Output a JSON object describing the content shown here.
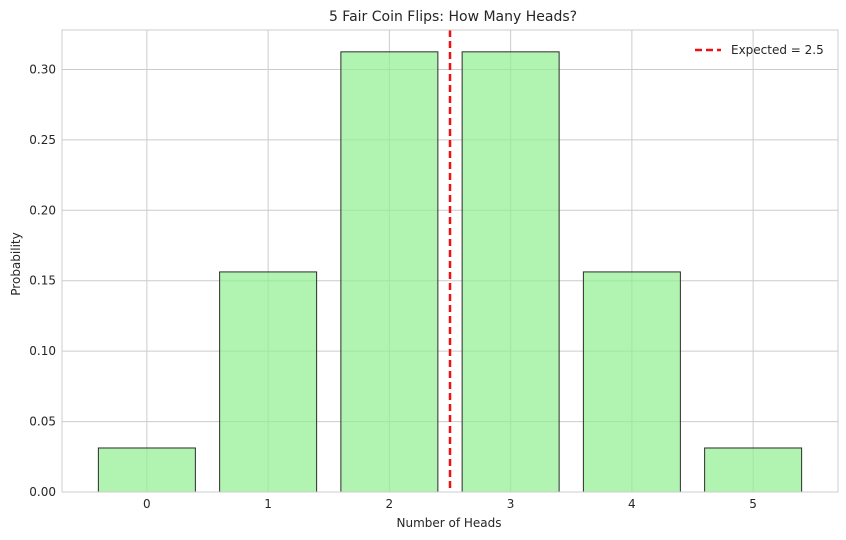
{
  "chart_data": {
    "type": "bar",
    "title": "5 Fair Coin Flips: How Many Heads?",
    "xlabel": "Number of Heads",
    "ylabel": "Probability",
    "categories": [
      "0",
      "1",
      "2",
      "3",
      "4",
      "5"
    ],
    "x": [
      0,
      1,
      2,
      3,
      4,
      5
    ],
    "values": [
      0.03125,
      0.15625,
      0.3125,
      0.3125,
      0.15625,
      0.03125
    ],
    "xlim": [
      -0.7,
      5.7
    ],
    "ylim": [
      0,
      0.328
    ],
    "yticks": [
      0.0,
      0.05,
      0.1,
      0.15,
      0.2,
      0.25,
      0.3
    ],
    "ytick_labels": [
      "0.00",
      "0.05",
      "0.10",
      "0.15",
      "0.20",
      "0.25",
      "0.30"
    ],
    "bar_color": "#90ee90",
    "bar_edge_color": "#2b2b2b",
    "grid": true,
    "reference_line": {
      "x": 2.5,
      "label": "Expected = 2.5",
      "color": "#ee1111",
      "style": "dashed"
    },
    "legend": {
      "placement": "top-right",
      "entries": [
        "Expected = 2.5"
      ]
    }
  }
}
